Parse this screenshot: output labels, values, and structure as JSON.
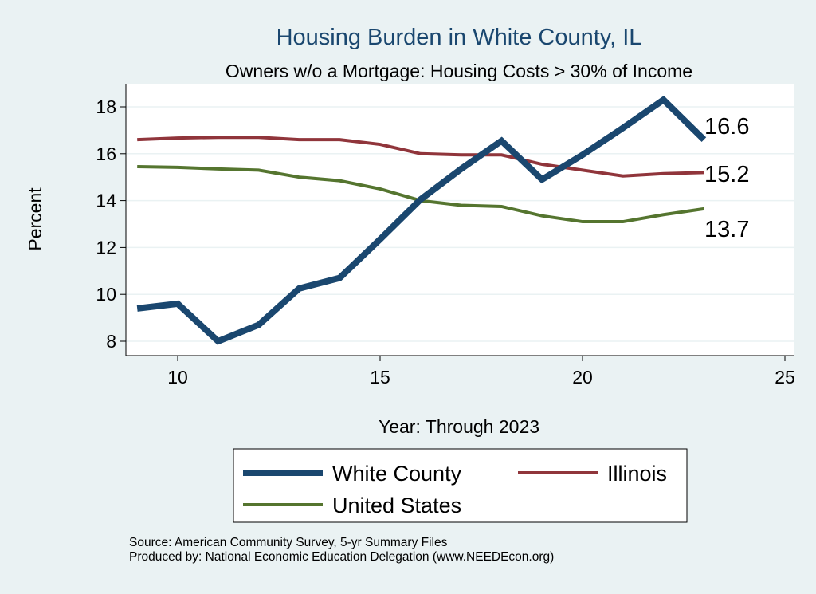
{
  "chart_data": {
    "type": "line",
    "title": "Housing Burden in White County, IL",
    "subtitle": "Owners w/o a Mortgage: Housing Costs > 30% of Income",
    "xlabel": "Year: Through 2023",
    "ylabel": "Percent",
    "xlim": [
      8.3,
      25.3
    ],
    "ylim": [
      7.6,
      19.0
    ],
    "xticks": [
      10,
      15,
      20,
      25
    ],
    "yticks": [
      8,
      10,
      12,
      14,
      16,
      18
    ],
    "grid": true,
    "legend_position": "bottom",
    "x": [
      9,
      10,
      11,
      12,
      13,
      14,
      15,
      16,
      17,
      18,
      19,
      20,
      21,
      22,
      23
    ],
    "series": [
      {
        "name": "White County",
        "color": "#1a476f",
        "width": 8,
        "end_label": "16.6",
        "values": [
          9.4,
          9.6,
          8.0,
          8.7,
          10.25,
          10.7,
          12.35,
          14.05,
          15.35,
          16.55,
          14.9,
          15.95,
          17.1,
          18.3,
          16.6
        ]
      },
      {
        "name": "Illinois",
        "color": "#90353b",
        "width": 4,
        "end_label": "15.2",
        "values": [
          16.6,
          16.67,
          16.7,
          16.7,
          16.6,
          16.6,
          16.4,
          16.0,
          15.95,
          15.95,
          15.55,
          15.3,
          15.05,
          15.15,
          15.2
        ]
      },
      {
        "name": "United States",
        "color": "#55752f",
        "width": 4,
        "end_label": "13.7",
        "values": [
          15.45,
          15.42,
          15.35,
          15.3,
          15.0,
          14.85,
          14.5,
          14.0,
          13.8,
          13.75,
          13.35,
          13.1,
          13.1,
          13.4,
          13.65
        ]
      }
    ]
  },
  "notes": {
    "source": "Source: American Community Survey, 5-yr Summary Files",
    "produced": "Produced by: National Economic Education Delegation (www.NEEDEcon.org)"
  }
}
